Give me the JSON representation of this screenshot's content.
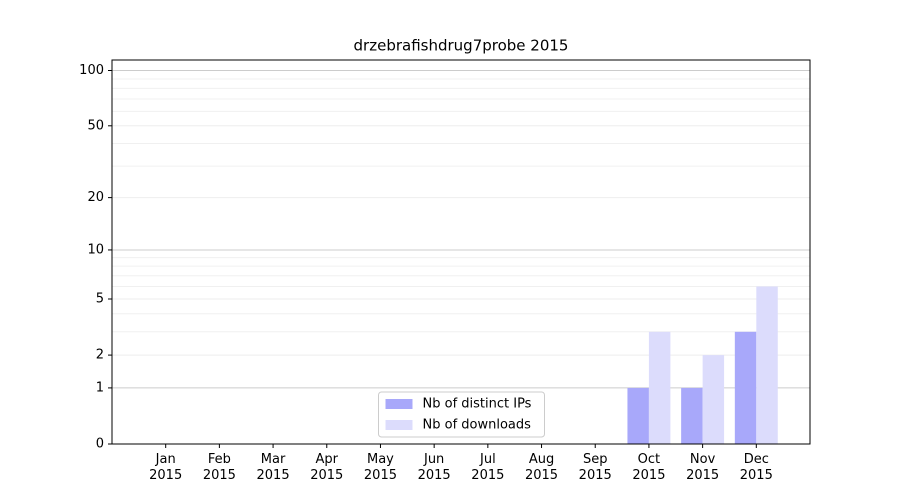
{
  "chart_data": {
    "type": "bar",
    "title": "drzebrafishdrug7probe 2015",
    "categories": [
      "Jan\n2015",
      "Feb\n2015",
      "Mar\n2015",
      "Apr\n2015",
      "May\n2015",
      "Jun\n2015",
      "Jul\n2015",
      "Aug\n2015",
      "Sep\n2015",
      "Oct\n2015",
      "Nov\n2015",
      "Dec\n2015"
    ],
    "series": [
      {
        "name": "Nb of distinct IPs",
        "color": "#a8a8fa",
        "values": [
          0,
          0,
          0,
          0,
          0,
          0,
          0,
          0,
          0,
          1,
          1,
          3
        ]
      },
      {
        "name": "Nb of downloads",
        "color": "#dcdcfc",
        "values": [
          0,
          0,
          0,
          0,
          0,
          0,
          0,
          0,
          0,
          3,
          2,
          6
        ]
      }
    ],
    "yscale": "log1p",
    "ylim": [
      0,
      114
    ],
    "yticks": [
      0,
      1,
      2,
      5,
      10,
      20,
      50,
      100
    ],
    "y_minor_ticks": [
      3,
      4,
      6,
      7,
      8,
      9,
      30,
      40,
      60,
      70,
      80,
      90
    ],
    "grid": true,
    "legend": "lower center"
  }
}
